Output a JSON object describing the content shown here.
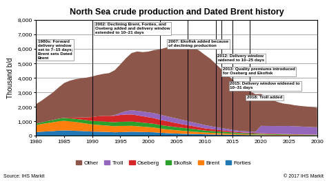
{
  "chart_data": {
    "type": "area",
    "stacked": true,
    "title": "North Sea crude production and Dated Brent history",
    "y_label": "Thousand b/d",
    "source": "Source: IHS Markit",
    "copyright": "© 2017 IHS Markit",
    "x": [
      1980,
      1981,
      1982,
      1983,
      1984,
      1985,
      1986,
      1987,
      1988,
      1989,
      1990,
      1991,
      1992,
      1993,
      1994,
      1995,
      1996,
      1997,
      1998,
      1999,
      2000,
      2001,
      2002,
      2003,
      2004,
      2005,
      2006,
      2007,
      2008,
      2009,
      2010,
      2011,
      2012,
      2013,
      2014,
      2015,
      2016,
      2017,
      2018,
      2019,
      2020,
      2021,
      2022,
      2023,
      2024,
      2025,
      2026,
      2027,
      2028,
      2029,
      2030
    ],
    "series": [
      {
        "name": "Forties",
        "values": [
          250,
          280,
          300,
          320,
          350,
          370,
          360,
          340,
          330,
          310,
          290,
          280,
          270,
          260,
          240,
          250,
          260,
          280,
          270,
          260,
          250,
          240,
          210,
          190,
          170,
          155,
          140,
          130,
          120,
          110,
          100,
          90,
          82,
          78,
          72,
          65,
          58,
          52,
          48,
          44,
          40,
          36,
          33,
          30,
          28,
          26,
          24,
          22,
          20,
          19,
          18
        ]
      },
      {
        "name": "Brent",
        "values": [
          480,
          530,
          570,
          610,
          650,
          660,
          640,
          610,
          570,
          530,
          490,
          470,
          450,
          430,
          420,
          430,
          420,
          410,
          390,
          370,
          350,
          330,
          290,
          265,
          245,
          225,
          205,
          185,
          165,
          145,
          125,
          115,
          105,
          95,
          88,
          76,
          65,
          55,
          50,
          46,
          42,
          38,
          35,
          32,
          30,
          28,
          26,
          24,
          22,
          20,
          18
        ]
      },
      {
        "name": "Ekofisk",
        "values": [
          100,
          115,
          135,
          155,
          175,
          195,
          205,
          215,
          225,
          235,
          245,
          255,
          265,
          265,
          275,
          285,
          295,
          295,
          285,
          275,
          265,
          255,
          245,
          235,
          225,
          215,
          205,
          195,
          178,
          158,
          138,
          128,
          118,
          108,
          97,
          86,
          76,
          70,
          65,
          60,
          55,
          50,
          46,
          43,
          40,
          38,
          35,
          33,
          30,
          28,
          26
        ]
      },
      {
        "name": "Oseberg",
        "values": [
          0,
          0,
          0,
          0,
          0,
          15,
          45,
          90,
          140,
          190,
          270,
          340,
          390,
          420,
          445,
          470,
          490,
          485,
          465,
          445,
          415,
          395,
          365,
          335,
          305,
          275,
          245,
          218,
          196,
          176,
          155,
          138,
          118,
          98,
          82,
          68,
          57,
          52,
          48,
          43,
          38,
          35,
          32,
          29,
          27,
          25,
          23,
          21,
          19,
          18,
          16
        ]
      },
      {
        "name": "Troll",
        "values": [
          0,
          0,
          0,
          0,
          0,
          0,
          0,
          0,
          0,
          0,
          0,
          0,
          0,
          0,
          45,
          140,
          240,
          290,
          310,
          325,
          335,
          345,
          355,
          345,
          335,
          325,
          305,
          285,
          265,
          245,
          225,
          195,
          175,
          155,
          135,
          115,
          95,
          87,
          82,
          77,
          510,
          520,
          530,
          540,
          550,
          560,
          550,
          540,
          530,
          520,
          510
        ]
      },
      {
        "name": "Other",
        "values": [
          1350,
          1500,
          1700,
          1900,
          2150,
          2400,
          2550,
          2650,
          2700,
          2750,
          2800,
          2850,
          2900,
          2950,
          3100,
          3350,
          3650,
          3950,
          4100,
          4100,
          4200,
          4350,
          4500,
          4700,
          4900,
          5100,
          5200,
          5250,
          5200,
          5050,
          4850,
          4650,
          4350,
          4050,
          3750,
          3450,
          3100,
          2950,
          2800,
          2600,
          2200,
          2000,
          1800,
          1650,
          1550,
          1500,
          1450,
          1420,
          1400,
          1380,
          1350
        ]
      }
    ],
    "xlim": [
      1980,
      2030
    ],
    "xticks": [
      1980,
      1985,
      1990,
      1995,
      2000,
      2005,
      2010,
      2015,
      2020,
      2025,
      2030
    ],
    "ylim": [
      0,
      8000
    ],
    "yticks": [
      0,
      {
        "value": 1000,
        "label": "1,000"
      },
      {
        "value": 2000,
        "label": "2,000"
      },
      {
        "value": 3000,
        "label": "3,000"
      },
      {
        "value": 4000,
        "label": "4,000"
      },
      {
        "value": 5000,
        "label": "5,000"
      },
      {
        "value": 6000,
        "label": "6,000"
      },
      {
        "value": 7000,
        "label": "7,000"
      },
      {
        "value": 8000,
        "label": "8,000"
      }
    ],
    "grid": true,
    "annotations": [
      {
        "x": 1990,
        "text": "1980s: Forward\ndelivery window\nset to 7–15 days;\nBrent sets Dated\nBrent"
      },
      {
        "x": 2002,
        "text": "2002: Declining Brent, Forties, and\nOseberg added and delivery window\nextended to 10–21 days"
      },
      {
        "x": 2007,
        "text": "2007: Ekofisk added because\nof declining production"
      },
      {
        "x": 2012,
        "text": "2012: Delivery window\nwidened to 10–25 days"
      },
      {
        "x": 2013,
        "text": "2013: Quality premiums introduced\nfor Oseberg and Ekofisk"
      },
      {
        "x": 2015,
        "text": "2015: Delivery window widened to\n10–31 days"
      },
      {
        "x": 2018,
        "text": "2018: Troll added"
      }
    ]
  }
}
